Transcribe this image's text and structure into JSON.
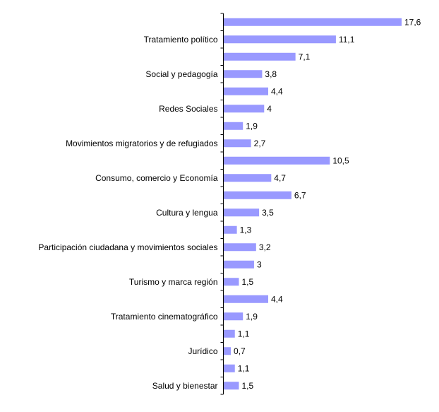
{
  "chart_data": {
    "type": "bar",
    "orientation": "horizontal",
    "bar_color": "#9999ff",
    "axis_color": "#000000",
    "grid": false,
    "legend": "none",
    "xlim": [
      0,
      18
    ],
    "bars": [
      {
        "label": "",
        "value": 17.6,
        "value_label": "17,6"
      },
      {
        "label": "Tratamiento político",
        "value": 11.1,
        "value_label": "11,1"
      },
      {
        "label": "",
        "value": 7.1,
        "value_label": "7,1"
      },
      {
        "label": "Social y pedagogía",
        "value": 3.8,
        "value_label": "3,8"
      },
      {
        "label": "",
        "value": 4.4,
        "value_label": "4,4"
      },
      {
        "label": "Redes Sociales",
        "value": 4.0,
        "value_label": "4"
      },
      {
        "label": "",
        "value": 1.9,
        "value_label": "1,9"
      },
      {
        "label": "Movimientos migratorios y de refugiados",
        "value": 2.7,
        "value_label": "2,7"
      },
      {
        "label": "",
        "value": 10.5,
        "value_label": "10,5"
      },
      {
        "label": "Consumo, comercio y Economía",
        "value": 4.7,
        "value_label": "4,7"
      },
      {
        "label": "",
        "value": 6.7,
        "value_label": "6,7"
      },
      {
        "label": "Cultura y lengua",
        "value": 3.5,
        "value_label": "3,5"
      },
      {
        "label": "",
        "value": 1.3,
        "value_label": "1,3"
      },
      {
        "label": "Participación ciudadana y movimientos sociales",
        "value": 3.2,
        "value_label": "3,2"
      },
      {
        "label": "",
        "value": 3.0,
        "value_label": "3"
      },
      {
        "label": "Turismo y marca región",
        "value": 1.5,
        "value_label": "1,5"
      },
      {
        "label": "",
        "value": 4.4,
        "value_label": "4,4"
      },
      {
        "label": "Tratamiento cinematográfico",
        "value": 1.9,
        "value_label": "1,9"
      },
      {
        "label": "",
        "value": 1.1,
        "value_label": "1,1"
      },
      {
        "label": "Jurídico",
        "value": 0.7,
        "value_label": "0,7"
      },
      {
        "label": "",
        "value": 1.1,
        "value_label": "1,1"
      },
      {
        "label": "Salud y bienestar",
        "value": 1.5,
        "value_label": "1,5"
      }
    ]
  }
}
